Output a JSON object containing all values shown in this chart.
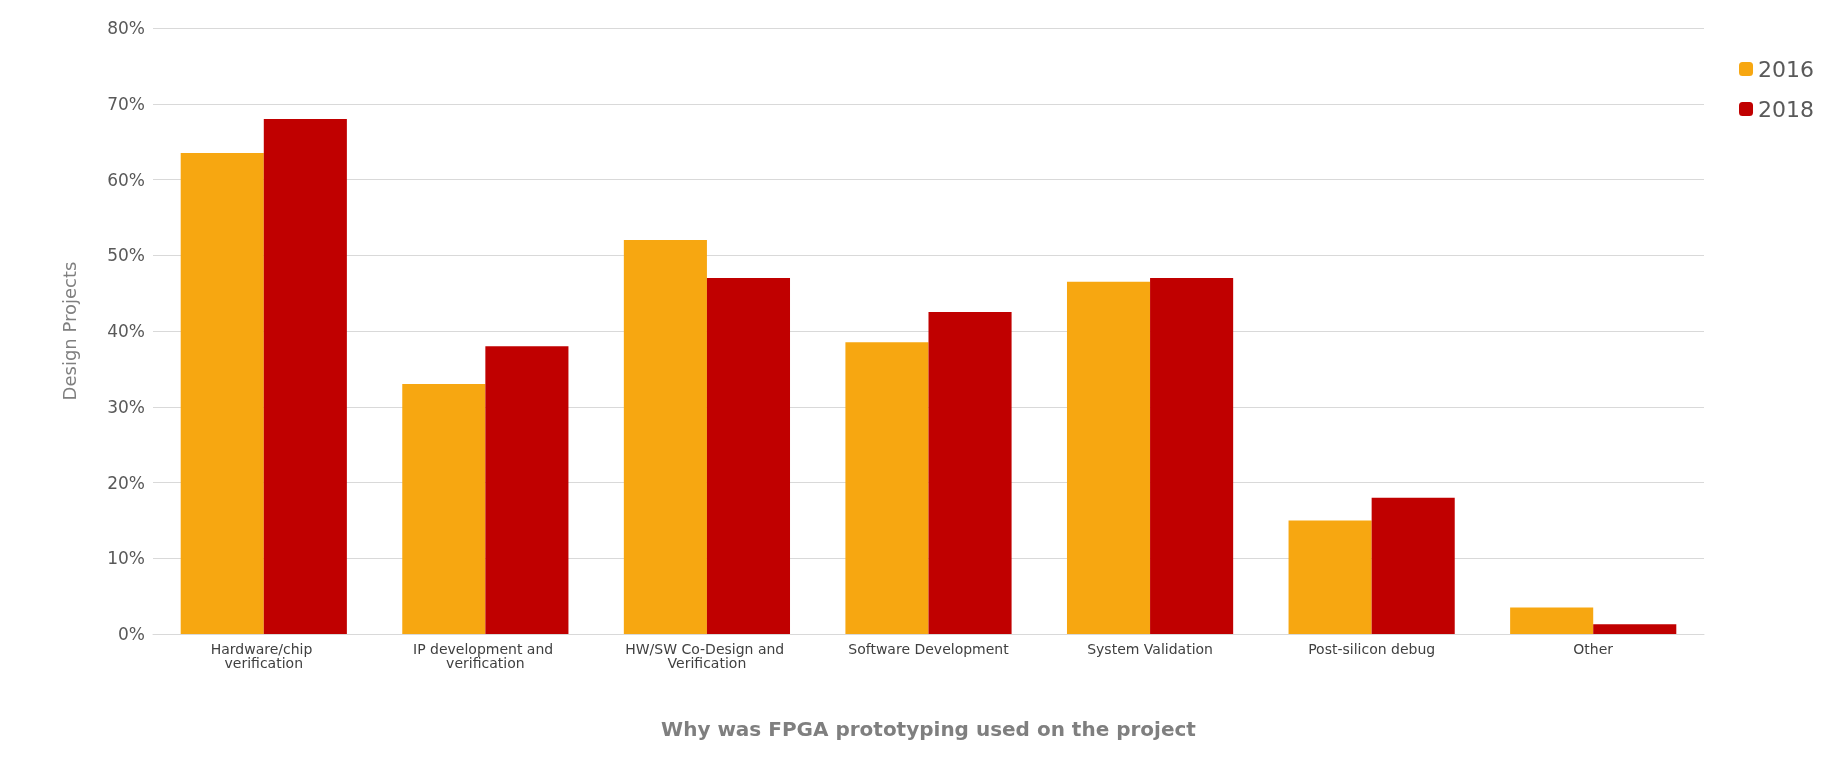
{
  "chart_data": {
    "type": "bar",
    "xlabel": "Why was FPGA prototyping used on the project",
    "ylabel": "Design Projects",
    "categories": [
      "Hardware/chip verification",
      "IP development and verification",
      "HW/SW Co-Design and Verification",
      "Software Development",
      "System Validation",
      "Post-silicon debug",
      "Other"
    ],
    "series": [
      {
        "name": "2016",
        "color": "#f7a711",
        "values": [
          63.5,
          33,
          52,
          38.5,
          46.5,
          15,
          3.5
        ]
      },
      {
        "name": "2018",
        "color": "#c00000",
        "values": [
          68,
          38,
          47,
          42.5,
          47,
          18,
          1.3
        ]
      }
    ],
    "ylim": [
      0,
      80
    ],
    "yticks": [
      {
        "value": 0,
        "label": "0%"
      },
      {
        "value": 10,
        "label": "10%"
      },
      {
        "value": 20,
        "label": "20%"
      },
      {
        "value": 30,
        "label": "30%"
      },
      {
        "value": 40,
        "label": "40%"
      },
      {
        "value": 50,
        "label": "50%"
      },
      {
        "value": 60,
        "label": "60%"
      },
      {
        "value": 70,
        "label": "70%"
      },
      {
        "value": 80,
        "label": "80%"
      }
    ],
    "grid": "y",
    "legend": "top right"
  }
}
